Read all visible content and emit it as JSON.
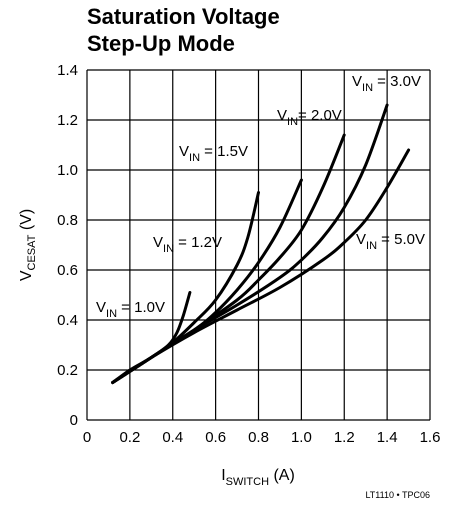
{
  "chart_data": {
    "type": "line",
    "title_line1": "Saturation Voltage",
    "title_line2": "Step-Up Mode",
    "xlabel_main": "I",
    "xlabel_sub": "SWITCH",
    "xlabel_unit": " (A)",
    "ylabel_main": "V",
    "ylabel_sub": "CESAT",
    "ylabel_unit": " (V)",
    "xlim": [
      0,
      1.6
    ],
    "ylim": [
      0,
      1.4
    ],
    "x_ticks": [
      "0",
      "0.2",
      "0.4",
      "0.6",
      "0.8",
      "1.0",
      "1.2",
      "1.4",
      "1.6"
    ],
    "y_ticks": [
      "0",
      "0.2",
      "0.4",
      "0.6",
      "0.8",
      "1.0",
      "1.2",
      "1.4"
    ],
    "grid": true,
    "series": [
      {
        "name": "V_IN = 1.0V",
        "label_prefix": "V",
        "label_sub": "IN",
        "label_suffix": " = 1.0V",
        "x": [
          0.12,
          0.2,
          0.3,
          0.38,
          0.42,
          0.45,
          0.48
        ],
        "y": [
          0.15,
          0.2,
          0.25,
          0.3,
          0.35,
          0.42,
          0.51
        ]
      },
      {
        "name": "V_IN = 1.2V",
        "label_prefix": "V",
        "label_sub": "IN",
        "label_suffix": " = 1.2V",
        "x": [
          0.12,
          0.3,
          0.4,
          0.5,
          0.6,
          0.7,
          0.75,
          0.8
        ],
        "y": [
          0.15,
          0.25,
          0.31,
          0.39,
          0.48,
          0.62,
          0.73,
          0.91
        ]
      },
      {
        "name": "V_IN = 1.5V",
        "label_prefix": "V",
        "label_sub": "IN",
        "label_suffix": " = 1.5V",
        "x": [
          0.12,
          0.3,
          0.5,
          0.6,
          0.7,
          0.8,
          0.9,
          1.0
        ],
        "y": [
          0.15,
          0.25,
          0.36,
          0.43,
          0.52,
          0.63,
          0.77,
          0.96
        ]
      },
      {
        "name": "V_IN = 2.0V",
        "label_prefix": "V",
        "label_sub": "IN",
        "label_suffix": "= 2.0V",
        "x": [
          0.12,
          0.3,
          0.5,
          0.7,
          0.8,
          0.9,
          1.0,
          1.1,
          1.2
        ],
        "y": [
          0.15,
          0.25,
          0.36,
          0.48,
          0.56,
          0.65,
          0.76,
          0.93,
          1.14
        ]
      },
      {
        "name": "V_IN = 3.0V",
        "label_prefix": "V",
        "label_sub": "IN",
        "label_suffix": " = 3.0V",
        "x": [
          0.12,
          0.3,
          0.5,
          0.7,
          0.9,
          1.0,
          1.1,
          1.2,
          1.3,
          1.4
        ],
        "y": [
          0.15,
          0.25,
          0.36,
          0.46,
          0.57,
          0.64,
          0.73,
          0.85,
          1.02,
          1.26
        ]
      },
      {
        "name": "V_IN = 5.0V",
        "label_prefix": "V",
        "label_sub": "IN",
        "label_suffix": " = 5.0V",
        "x": [
          0.12,
          0.3,
          0.5,
          0.7,
          0.9,
          1.1,
          1.2,
          1.3,
          1.4,
          1.5
        ],
        "y": [
          0.15,
          0.25,
          0.35,
          0.44,
          0.53,
          0.64,
          0.71,
          0.8,
          0.93,
          1.08
        ]
      }
    ],
    "footnote": "LT1110 • TPC06"
  }
}
